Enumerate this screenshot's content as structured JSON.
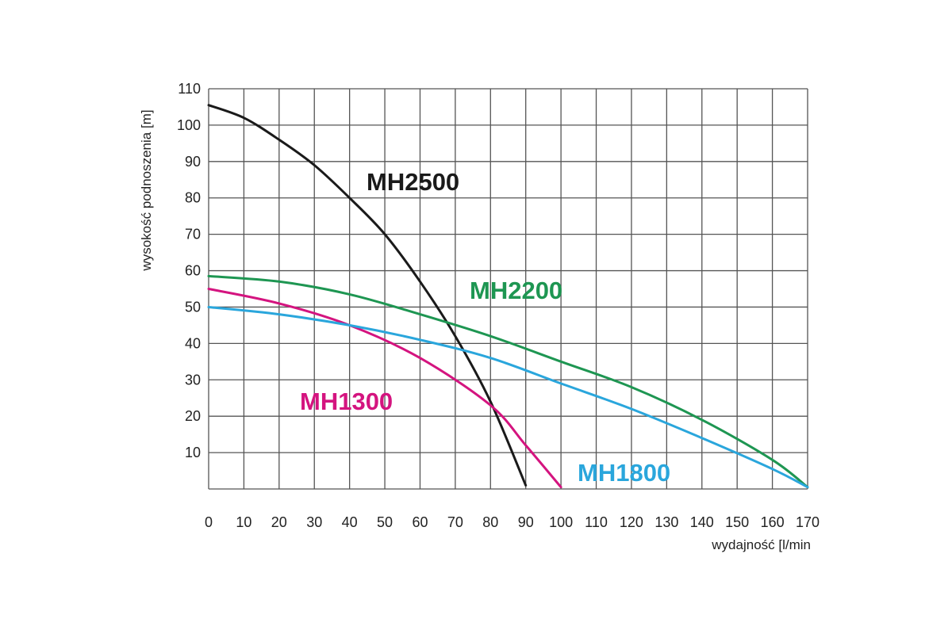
{
  "chart_data": {
    "type": "line",
    "xlabel": "wydajność [l/min",
    "ylabel": "wysokość podnoszenia [m]",
    "xlim": [
      0,
      170
    ],
    "ylim": [
      0,
      110
    ],
    "x_ticks": [
      "0",
      "10",
      "20",
      "30",
      "40",
      "50",
      "60",
      "70",
      "80",
      "90",
      "100",
      "110",
      "120",
      "130",
      "140",
      "150",
      "160",
      "170"
    ],
    "y_ticks": [
      "10",
      "20",
      "30",
      "40",
      "50",
      "60",
      "70",
      "80",
      "90",
      "100",
      "110"
    ],
    "grid": true,
    "legend": "inline labels",
    "series": [
      {
        "name": "MH2500",
        "color": "#1a1a1a",
        "points": [
          [
            0,
            105.5
          ],
          [
            10,
            102
          ],
          [
            20,
            96
          ],
          [
            30,
            89
          ],
          [
            40,
            80
          ],
          [
            50,
            70
          ],
          [
            60,
            57
          ],
          [
            70,
            42
          ],
          [
            80,
            24
          ],
          [
            90,
            1
          ]
        ]
      },
      {
        "name": "MH2200",
        "color": "#1e9652",
        "points": [
          [
            0,
            58.5
          ],
          [
            20,
            57
          ],
          [
            40,
            53.5
          ],
          [
            60,
            48
          ],
          [
            80,
            42
          ],
          [
            100,
            35
          ],
          [
            120,
            28
          ],
          [
            140,
            19
          ],
          [
            160,
            8
          ],
          [
            170,
            0.5
          ]
        ]
      },
      {
        "name": "MH1300",
        "color": "#d4147f",
        "points": [
          [
            0,
            55
          ],
          [
            20,
            51
          ],
          [
            40,
            45
          ],
          [
            60,
            36
          ],
          [
            80,
            23
          ],
          [
            90,
            12
          ],
          [
            100,
            0.5
          ]
        ]
      },
      {
        "name": "MH1800",
        "color": "#2aa6dc",
        "points": [
          [
            0,
            50
          ],
          [
            20,
            48
          ],
          [
            40,
            45
          ],
          [
            60,
            41
          ],
          [
            80,
            36
          ],
          [
            100,
            29
          ],
          [
            120,
            22
          ],
          [
            140,
            14
          ],
          [
            160,
            5.5
          ],
          [
            170,
            0.5
          ]
        ]
      }
    ]
  }
}
